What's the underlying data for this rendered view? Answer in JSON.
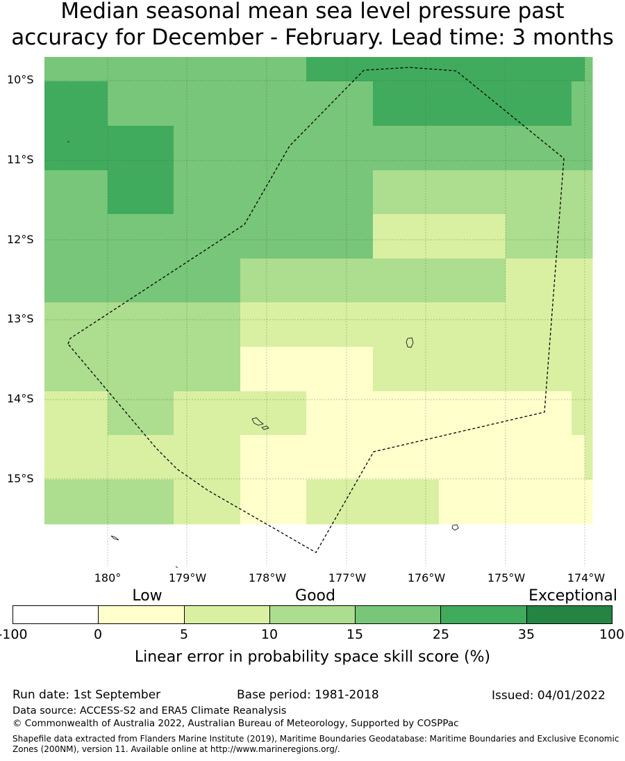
{
  "title_line1": "Median seasonal mean sea level pressure past",
  "title_line2": "accuracy for December - February. Lead time: 3 months",
  "map": {
    "lat_labels": [
      "10°S",
      "11°S",
      "12°S",
      "13°S",
      "14°S",
      "15°S"
    ],
    "lon_labels": [
      "180°",
      "179°W",
      "178°W",
      "177°W",
      "176°W",
      "175°W",
      "174°W"
    ],
    "skill_grid_categories": [
      [
        4,
        4,
        4,
        4,
        5,
        5,
        5,
        5,
        5,
        4
      ],
      [
        5,
        4,
        4,
        4,
        4,
        5,
        5,
        5,
        4,
        4
      ],
      [
        5,
        5,
        4,
        4,
        4,
        4,
        4,
        4,
        4,
        4
      ],
      [
        4,
        5,
        4,
        4,
        4,
        3,
        3,
        3,
        3,
        3
      ],
      [
        4,
        4,
        4,
        4,
        4,
        2,
        2,
        3,
        3,
        3
      ],
      [
        4,
        4,
        4,
        3,
        3,
        3,
        3,
        2,
        2,
        2
      ],
      [
        3,
        3,
        3,
        2,
        2,
        2,
        2,
        2,
        2,
        2
      ],
      [
        3,
        3,
        3,
        1,
        1,
        2,
        2,
        2,
        2,
        2
      ],
      [
        2,
        3,
        2,
        2,
        1,
        1,
        1,
        1,
        2,
        2
      ],
      [
        2,
        2,
        2,
        1,
        1,
        1,
        1,
        1,
        1,
        2
      ],
      [
        3,
        3,
        2,
        1,
        2,
        2,
        1,
        1,
        1,
        1
      ]
    ]
  },
  "colorbar": {
    "category_labels": [
      "Low",
      "Good",
      "Exceptional"
    ],
    "ticks": [
      "-100",
      "0",
      "5",
      "10",
      "15",
      "25",
      "35",
      "100"
    ],
    "colors": [
      "#ffffff",
      "#ffffcc",
      "#d9f0a3",
      "#addd8e",
      "#78c679",
      "#41ab5d",
      "#238443"
    ],
    "title": "Linear error in probability space skill score (%)"
  },
  "footer": {
    "run_date": "Run date: 1st September",
    "base_period": "Base period: 1981-2018",
    "issued": "Issued: 04/01/2022",
    "data_source": "Data source: ACCESS-S2 and ERA5 Climate Reanalysis",
    "copyright": "© Commonwealth of Australia 2022, Australian Bureau of Meteorology, Supported by COSPPac",
    "shapefile_note": "Shapefile data extracted from Flanders Marine Institute (2019), Maritime Boundaries Geodatabase: Maritime Boundaries and Exclusive Economic Zones (200NM), version 11. Available online at http://www.marineregions.org/."
  }
}
